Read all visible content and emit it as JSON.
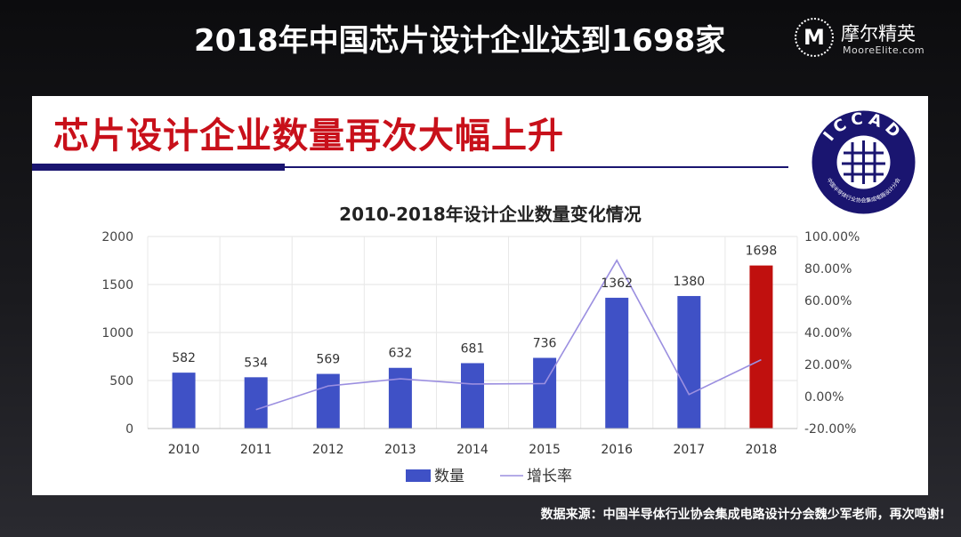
{
  "slide": {
    "title": "2018年中国芯片设计企业达到1698家",
    "brand_name": "摩尔精英",
    "brand_sub": "MooreElite.com",
    "brand_mark": "M",
    "footnote": "数据来源：中国半导体行业协会集成电路设计分会魏少军老师，再次鸣谢!"
  },
  "panel": {
    "heading": "芯片设计企业数量再次大幅上升",
    "logo_text": "ICCAD",
    "logo_ring_text": "中国半导体行业协会集成电路设计分会"
  },
  "colors": {
    "bar": "#3f51c6",
    "bar_highlight": "#c0100e",
    "line": "#9b8fe0",
    "heading": "#c8101a",
    "navy": "#1a1570"
  },
  "chart_data": {
    "type": "bar",
    "title": "2010-2018年设计企业数量变化情况",
    "categories": [
      "2010",
      "2011",
      "2012",
      "2013",
      "2014",
      "2015",
      "2016",
      "2017",
      "2018"
    ],
    "series": [
      {
        "name": "数量",
        "type": "bar",
        "axis": "left",
        "values": [
          582,
          534,
          569,
          632,
          681,
          736,
          1362,
          1380,
          1698
        ]
      },
      {
        "name": "增长率",
        "type": "line",
        "axis": "right",
        "values": [
          null,
          -8.2,
          6.6,
          11.1,
          7.8,
          8.1,
          85.1,
          1.3,
          23.0
        ]
      }
    ],
    "ylim_left": [
      0,
      2000
    ],
    "yticks_left": [
      "0",
      "500",
      "1000",
      "1500",
      "2000"
    ],
    "ylim_right": [
      -20,
      100
    ],
    "yticks_right": [
      "-20.00%",
      "0.00%",
      "20.00%",
      "40.00%",
      "60.00%",
      "80.00%",
      "100.00%"
    ],
    "legend": [
      "数量",
      "增长率"
    ],
    "legend_position": "bottom",
    "grid": true
  }
}
